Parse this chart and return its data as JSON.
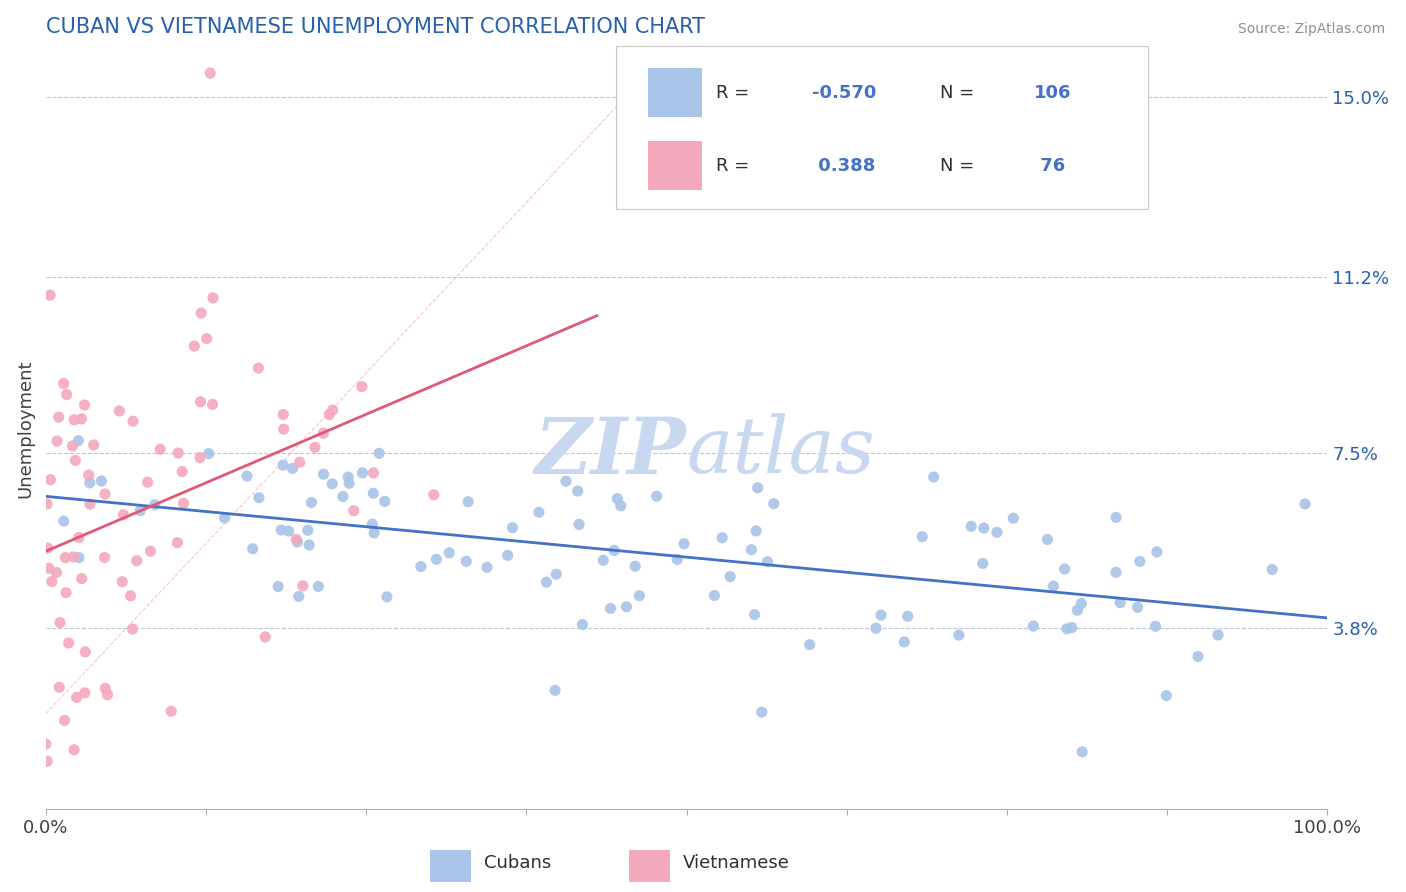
{
  "title": "CUBAN VS VIETNAMESE UNEMPLOYMENT CORRELATION CHART",
  "source": "Source: ZipAtlas.com",
  "ylabel": "Unemployment",
  "xlim": [
    0.0,
    1.0
  ],
  "ylim": [
    0.0,
    0.16
  ],
  "yticks": [
    0.038,
    0.075,
    0.112,
    0.15
  ],
  "ytick_labels": [
    "3.8%",
    "7.5%",
    "11.2%",
    "15.0%"
  ],
  "xticks": [
    0.0,
    0.125,
    0.25,
    0.375,
    0.5,
    0.625,
    0.75,
    0.875,
    1.0
  ],
  "xtick_labels": [
    "0.0%",
    "",
    "",
    "",
    "",
    "",
    "",
    "",
    "100.0%"
  ],
  "cuban_color": "#a8c4e8",
  "vietnamese_color": "#f4a8bc",
  "cuban_line_color": "#4472c4",
  "vietnamese_line_color": "#e05878",
  "watermark_zip": "ZIP",
  "watermark_atlas": "atlas",
  "watermark_color": "#c8d8f0",
  "background_color": "#ffffff",
  "grid_color": "#b8c8d8",
  "title_color": "#2860b0",
  "source_color": "#909090",
  "axis_label_color": "#2860b0",
  "tick_label_color": "#2860b0"
}
